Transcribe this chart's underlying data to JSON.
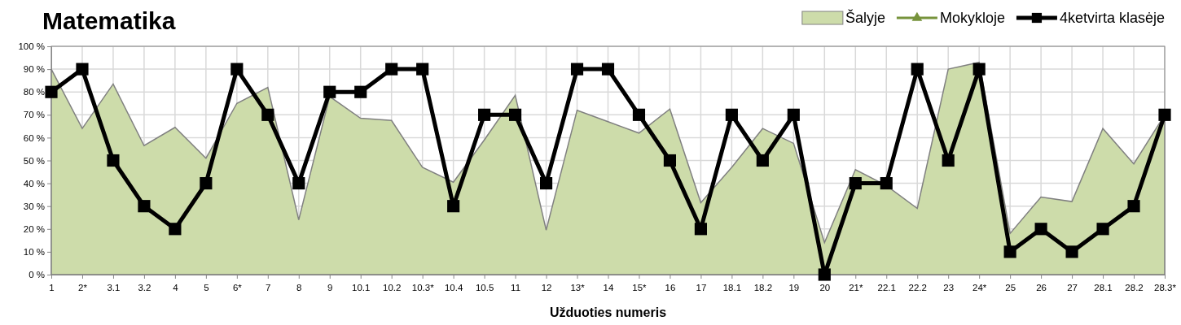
{
  "chart_data": {
    "type": "line",
    "title": "Matematika",
    "xlabel": "Užduoties numeris",
    "categories": [
      "1",
      "2*",
      "3.1",
      "3.2",
      "4",
      "5",
      "6*",
      "7",
      "8",
      "9",
      "10.1",
      "10.2",
      "10.3*",
      "10.4",
      "10.5",
      "11",
      "12",
      "13*",
      "14",
      "15*",
      "16",
      "17",
      "18.1",
      "18.2",
      "19",
      "20",
      "21*",
      "22.1",
      "22.2",
      "23",
      "24*",
      "25",
      "26",
      "27",
      "28.1",
      "28.2",
      "28.3*"
    ],
    "series": [
      {
        "name": "Šalyje",
        "type": "area",
        "color": "#cddcaa",
        "values": [
          90,
          64,
          83.5,
          56.5,
          64.5,
          51,
          75,
          82,
          24,
          78,
          68.5,
          67.5,
          47,
          40.5,
          59,
          78.5,
          19.5,
          72,
          67,
          62,
          72.5,
          31.5,
          47,
          64,
          57.5,
          14,
          46,
          39,
          29,
          90,
          93,
          18,
          34,
          32,
          64,
          48.5,
          70
        ]
      },
      {
        "name": "Mokykloje",
        "color": "#77933c",
        "marker": "triangle",
        "values": [
          null,
          null,
          null,
          null,
          null,
          null,
          null,
          null,
          null,
          null,
          null,
          null,
          null,
          null,
          null,
          null,
          null,
          null,
          null,
          null,
          null,
          null,
          null,
          null,
          null,
          null,
          null,
          null,
          null,
          null,
          null,
          null,
          null,
          null,
          null,
          null,
          null
        ]
      },
      {
        "name": "4ketvirta klasėje",
        "color": "#000000",
        "marker": "square",
        "values": [
          80,
          90,
          50,
          30,
          20,
          40,
          90,
          70,
          40,
          80,
          80,
          90,
          90,
          30,
          70,
          70,
          40,
          90,
          90,
          70,
          50,
          20,
          70,
          50,
          70,
          0,
          40,
          40,
          90,
          50,
          90,
          10,
          20,
          10,
          20,
          30,
          70
        ]
      }
    ],
    "ylim": [
      0,
      100
    ],
    "yticks": [
      {
        "value": 0,
        "label": "0 %"
      },
      {
        "value": 10,
        "label": "10 %"
      },
      {
        "value": 20,
        "label": "20 %"
      },
      {
        "value": 30,
        "label": "30 %"
      },
      {
        "value": 40,
        "label": "40 %"
      },
      {
        "value": 50,
        "label": "50 %"
      },
      {
        "value": 60,
        "label": "60 %"
      },
      {
        "value": 70,
        "label": "70 %"
      },
      {
        "value": 80,
        "label": "80 %"
      },
      {
        "value": 90,
        "label": "90 %"
      },
      {
        "value": 100,
        "label": "100 %"
      }
    ],
    "grid": true,
    "legend": "top right"
  }
}
